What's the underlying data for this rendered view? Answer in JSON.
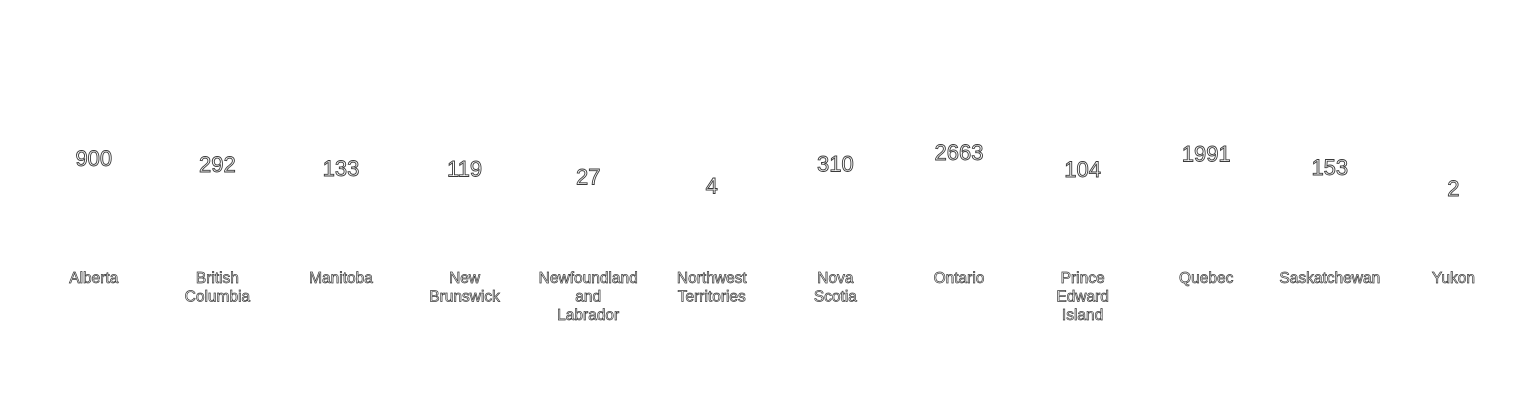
{
  "chart_data": {
    "type": "bar",
    "title": "",
    "xlabel": "",
    "ylabel": "",
    "categories": [
      "Alberta",
      "British Columbia",
      "Manitoba",
      "New Brunswick",
      "Newfoundland and Labrador",
      "Northwest Territories",
      "Nova Scotia",
      "Ontario",
      "Prince Edward Island",
      "Quebec",
      "Saskatchewan",
      "Yukon"
    ],
    "category_lines": [
      [
        "Alberta"
      ],
      [
        "British",
        "Columbia"
      ],
      [
        "Manitoba"
      ],
      [
        "New",
        "Brunswick"
      ],
      [
        "Newfoundland",
        "and",
        "Labrador"
      ],
      [
        "Northwest",
        "Territories"
      ],
      [
        "Nova",
        "Scotia"
      ],
      [
        "Ontario"
      ],
      [
        "Prince",
        "Edward",
        "Island"
      ],
      [
        "Quebec"
      ],
      [
        "Saskatchewan"
      ],
      [
        "Yukon"
      ]
    ],
    "values": [
      900,
      292,
      133,
      119,
      27,
      4,
      310,
      2663,
      104,
      1991,
      153,
      2
    ],
    "bar_color": "#ffffff",
    "text_outline_color": "#3a3a3a",
    "background": "#ffffff",
    "grid": false,
    "legend": "none"
  }
}
